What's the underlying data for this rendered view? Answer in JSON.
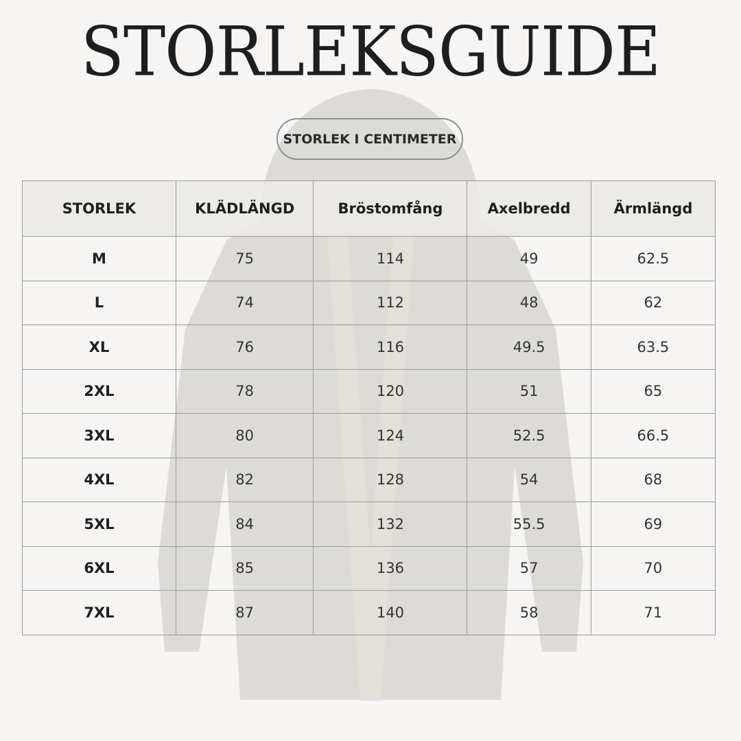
{
  "title": "STORLEKSGUIDE",
  "unit_label": "STORLEK I CENTIMETER",
  "table": {
    "headers": [
      "STORLEK",
      "KLÄDLÄNGD",
      "Bröstomfång",
      "Axelbredd",
      "Ärmlängd"
    ],
    "rows": [
      [
        "M",
        "75",
        "114",
        "49",
        "62.5"
      ],
      [
        "L",
        "74",
        "112",
        "48",
        "62"
      ],
      [
        "XL",
        "76",
        "116",
        "49.5",
        "63.5"
      ],
      [
        "2XL",
        "78",
        "120",
        "51",
        "65"
      ],
      [
        "3XL",
        "80",
        "124",
        "52.5",
        "66.5"
      ],
      [
        "4XL",
        "82",
        "128",
        "54",
        "68"
      ],
      [
        "5XL",
        "84",
        "132",
        "55.5",
        "69"
      ],
      [
        "6XL",
        "85",
        "136",
        "57",
        "70"
      ],
      [
        "7XL",
        "87",
        "140",
        "58",
        "71"
      ]
    ]
  },
  "background_image": "jacket-watermark"
}
